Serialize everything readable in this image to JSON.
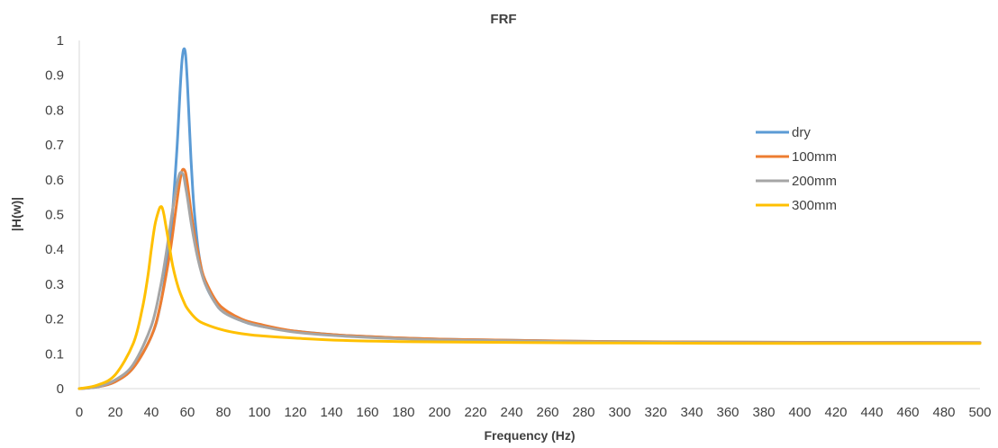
{
  "chart_data": {
    "type": "line",
    "title": "FRF",
    "xlabel": "Frequency (Hz)",
    "ylabel": "|H(w)|",
    "xlim": [
      0,
      500
    ],
    "ylim": [
      0,
      1
    ],
    "xticks": [
      0,
      20,
      40,
      60,
      80,
      100,
      120,
      140,
      160,
      180,
      200,
      220,
      240,
      260,
      280,
      300,
      320,
      340,
      360,
      380,
      400,
      420,
      440,
      460,
      480,
      500
    ],
    "yticks": [
      0,
      0.1,
      0.2,
      0.3,
      0.4,
      0.5,
      0.6,
      0.7,
      0.8,
      0.9,
      1
    ],
    "grid": false,
    "legend_position": "right",
    "series": [
      {
        "name": "dry",
        "color": "#5B9BD5",
        "x": [
          0,
          10,
          20,
          30,
          40,
          45,
          50,
          52,
          54,
          55,
          56,
          57,
          58,
          59,
          60,
          61,
          62,
          63,
          64,
          66,
          68,
          70,
          75,
          80,
          90,
          100,
          120,
          150,
          200,
          300,
          400,
          500
        ],
        "y": [
          0,
          0.005,
          0.02,
          0.06,
          0.15,
          0.24,
          0.41,
          0.52,
          0.67,
          0.76,
          0.86,
          0.94,
          0.975,
          0.96,
          0.88,
          0.77,
          0.66,
          0.57,
          0.5,
          0.4,
          0.34,
          0.3,
          0.25,
          0.22,
          0.195,
          0.18,
          0.165,
          0.152,
          0.142,
          0.135,
          0.133,
          0.132
        ]
      },
      {
        "name": "100mm",
        "color": "#ED7D31",
        "x": [
          0,
          10,
          20,
          30,
          40,
          45,
          50,
          52,
          54,
          56,
          57,
          58,
          59,
          60,
          61,
          62,
          64,
          66,
          68,
          70,
          75,
          80,
          90,
          100,
          120,
          150,
          200,
          300,
          400,
          500
        ],
        "y": [
          0,
          0.005,
          0.02,
          0.06,
          0.15,
          0.24,
          0.38,
          0.45,
          0.53,
          0.6,
          0.625,
          0.63,
          0.62,
          0.59,
          0.55,
          0.51,
          0.44,
          0.39,
          0.34,
          0.31,
          0.26,
          0.23,
          0.2,
          0.185,
          0.165,
          0.152,
          0.142,
          0.135,
          0.133,
          0.132
        ]
      },
      {
        "name": "200mm",
        "color": "#A5A5A5",
        "x": [
          0,
          10,
          20,
          30,
          40,
          45,
          48,
          50,
          52,
          54,
          55,
          56,
          57,
          58,
          59,
          60,
          62,
          64,
          66,
          68,
          70,
          75,
          80,
          90,
          100,
          120,
          150,
          200,
          300,
          400,
          500
        ],
        "y": [
          0,
          0.005,
          0.025,
          0.07,
          0.18,
          0.29,
          0.38,
          0.45,
          0.52,
          0.58,
          0.605,
          0.62,
          0.62,
          0.61,
          0.58,
          0.55,
          0.48,
          0.42,
          0.37,
          0.33,
          0.3,
          0.25,
          0.22,
          0.195,
          0.18,
          0.162,
          0.15,
          0.14,
          0.134,
          0.132,
          0.131
        ]
      },
      {
        "name": "300mm",
        "color": "#FFC000",
        "x": [
          0,
          10,
          20,
          30,
          35,
          38,
          40,
          42,
          44,
          45,
          46,
          47,
          48,
          50,
          52,
          55,
          58,
          60,
          65,
          70,
          80,
          90,
          100,
          120,
          150,
          200,
          300,
          400,
          500
        ],
        "y": [
          0,
          0.01,
          0.04,
          0.13,
          0.23,
          0.32,
          0.4,
          0.47,
          0.51,
          0.522,
          0.52,
          0.5,
          0.47,
          0.41,
          0.35,
          0.29,
          0.25,
          0.23,
          0.2,
          0.185,
          0.168,
          0.158,
          0.152,
          0.145,
          0.138,
          0.134,
          0.131,
          0.13,
          0.13
        ]
      }
    ]
  }
}
